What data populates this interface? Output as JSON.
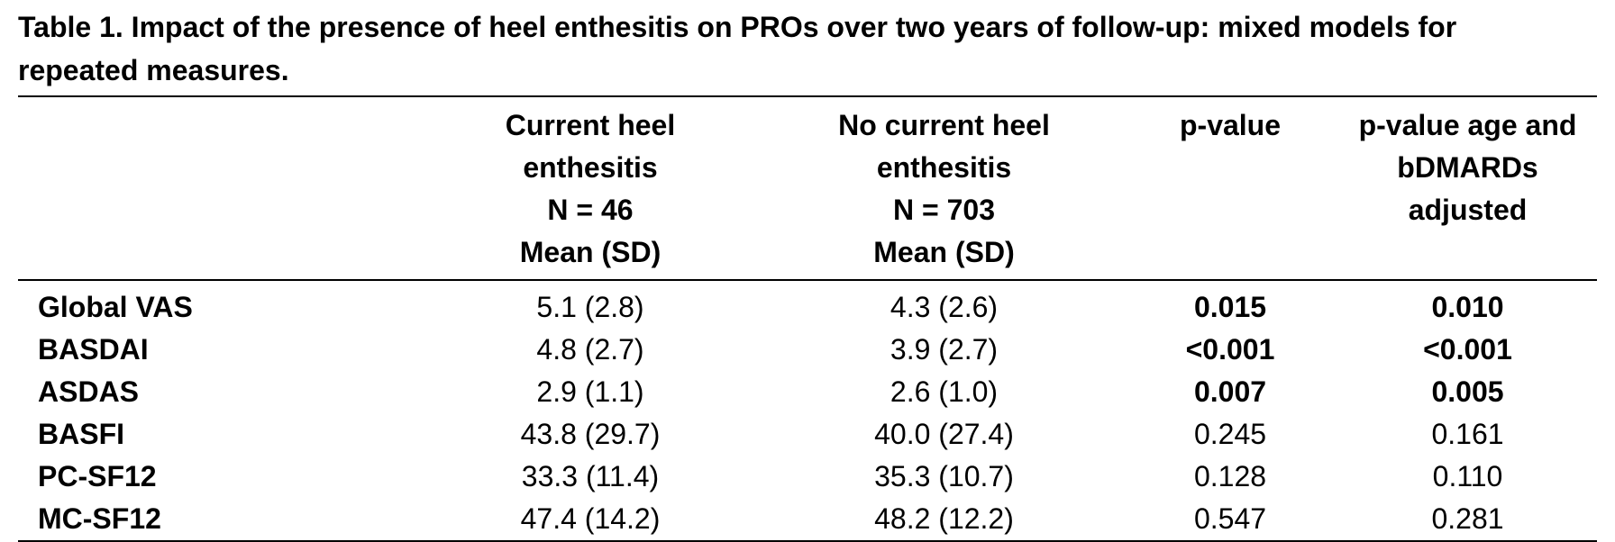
{
  "caption": {
    "line1": "Table 1. Impact of the presence of heel enthesitis on PROs over two years of follow-up: mixed models for",
    "line2": "repeated measures."
  },
  "columns": {
    "col1": [
      "Current heel",
      "enthesitis",
      "N = 46",
      "Mean (SD)"
    ],
    "col2": [
      "No current heel",
      "enthesitis",
      "N = 703",
      "Mean (SD)"
    ],
    "col3": [
      "p-value"
    ],
    "col4": [
      "p-value age and",
      "bDMARDs",
      "adjusted"
    ]
  },
  "rows": [
    {
      "label": "Global VAS",
      "current": "5.1 (2.8)",
      "no_current": "4.3 (2.6)",
      "p": "0.015",
      "p_adj": "0.010",
      "significant": true
    },
    {
      "label": "BASDAI",
      "current": "4.8 (2.7)",
      "no_current": "3.9 (2.7)",
      "p": "<0.001",
      "p_adj": "<0.001",
      "significant": true
    },
    {
      "label": "ASDAS",
      "current": "2.9 (1.1)",
      "no_current": "2.6 (1.0)",
      "p": "0.007",
      "p_adj": "0.005",
      "significant": true
    },
    {
      "label": "BASFI",
      "current": "43.8 (29.7)",
      "no_current": "40.0 (27.4)",
      "p": "0.245",
      "p_adj": "0.161",
      "significant": false
    },
    {
      "label": "PC-SF12",
      "current": "33.3 (11.4)",
      "no_current": "35.3 (10.7)",
      "p": "0.128",
      "p_adj": "0.110",
      "significant": false
    },
    {
      "label": "MC-SF12",
      "current": "47.4 (14.2)",
      "no_current": "48.2 (12.2)",
      "p": "0.547",
      "p_adj": "0.281",
      "significant": false
    }
  ]
}
